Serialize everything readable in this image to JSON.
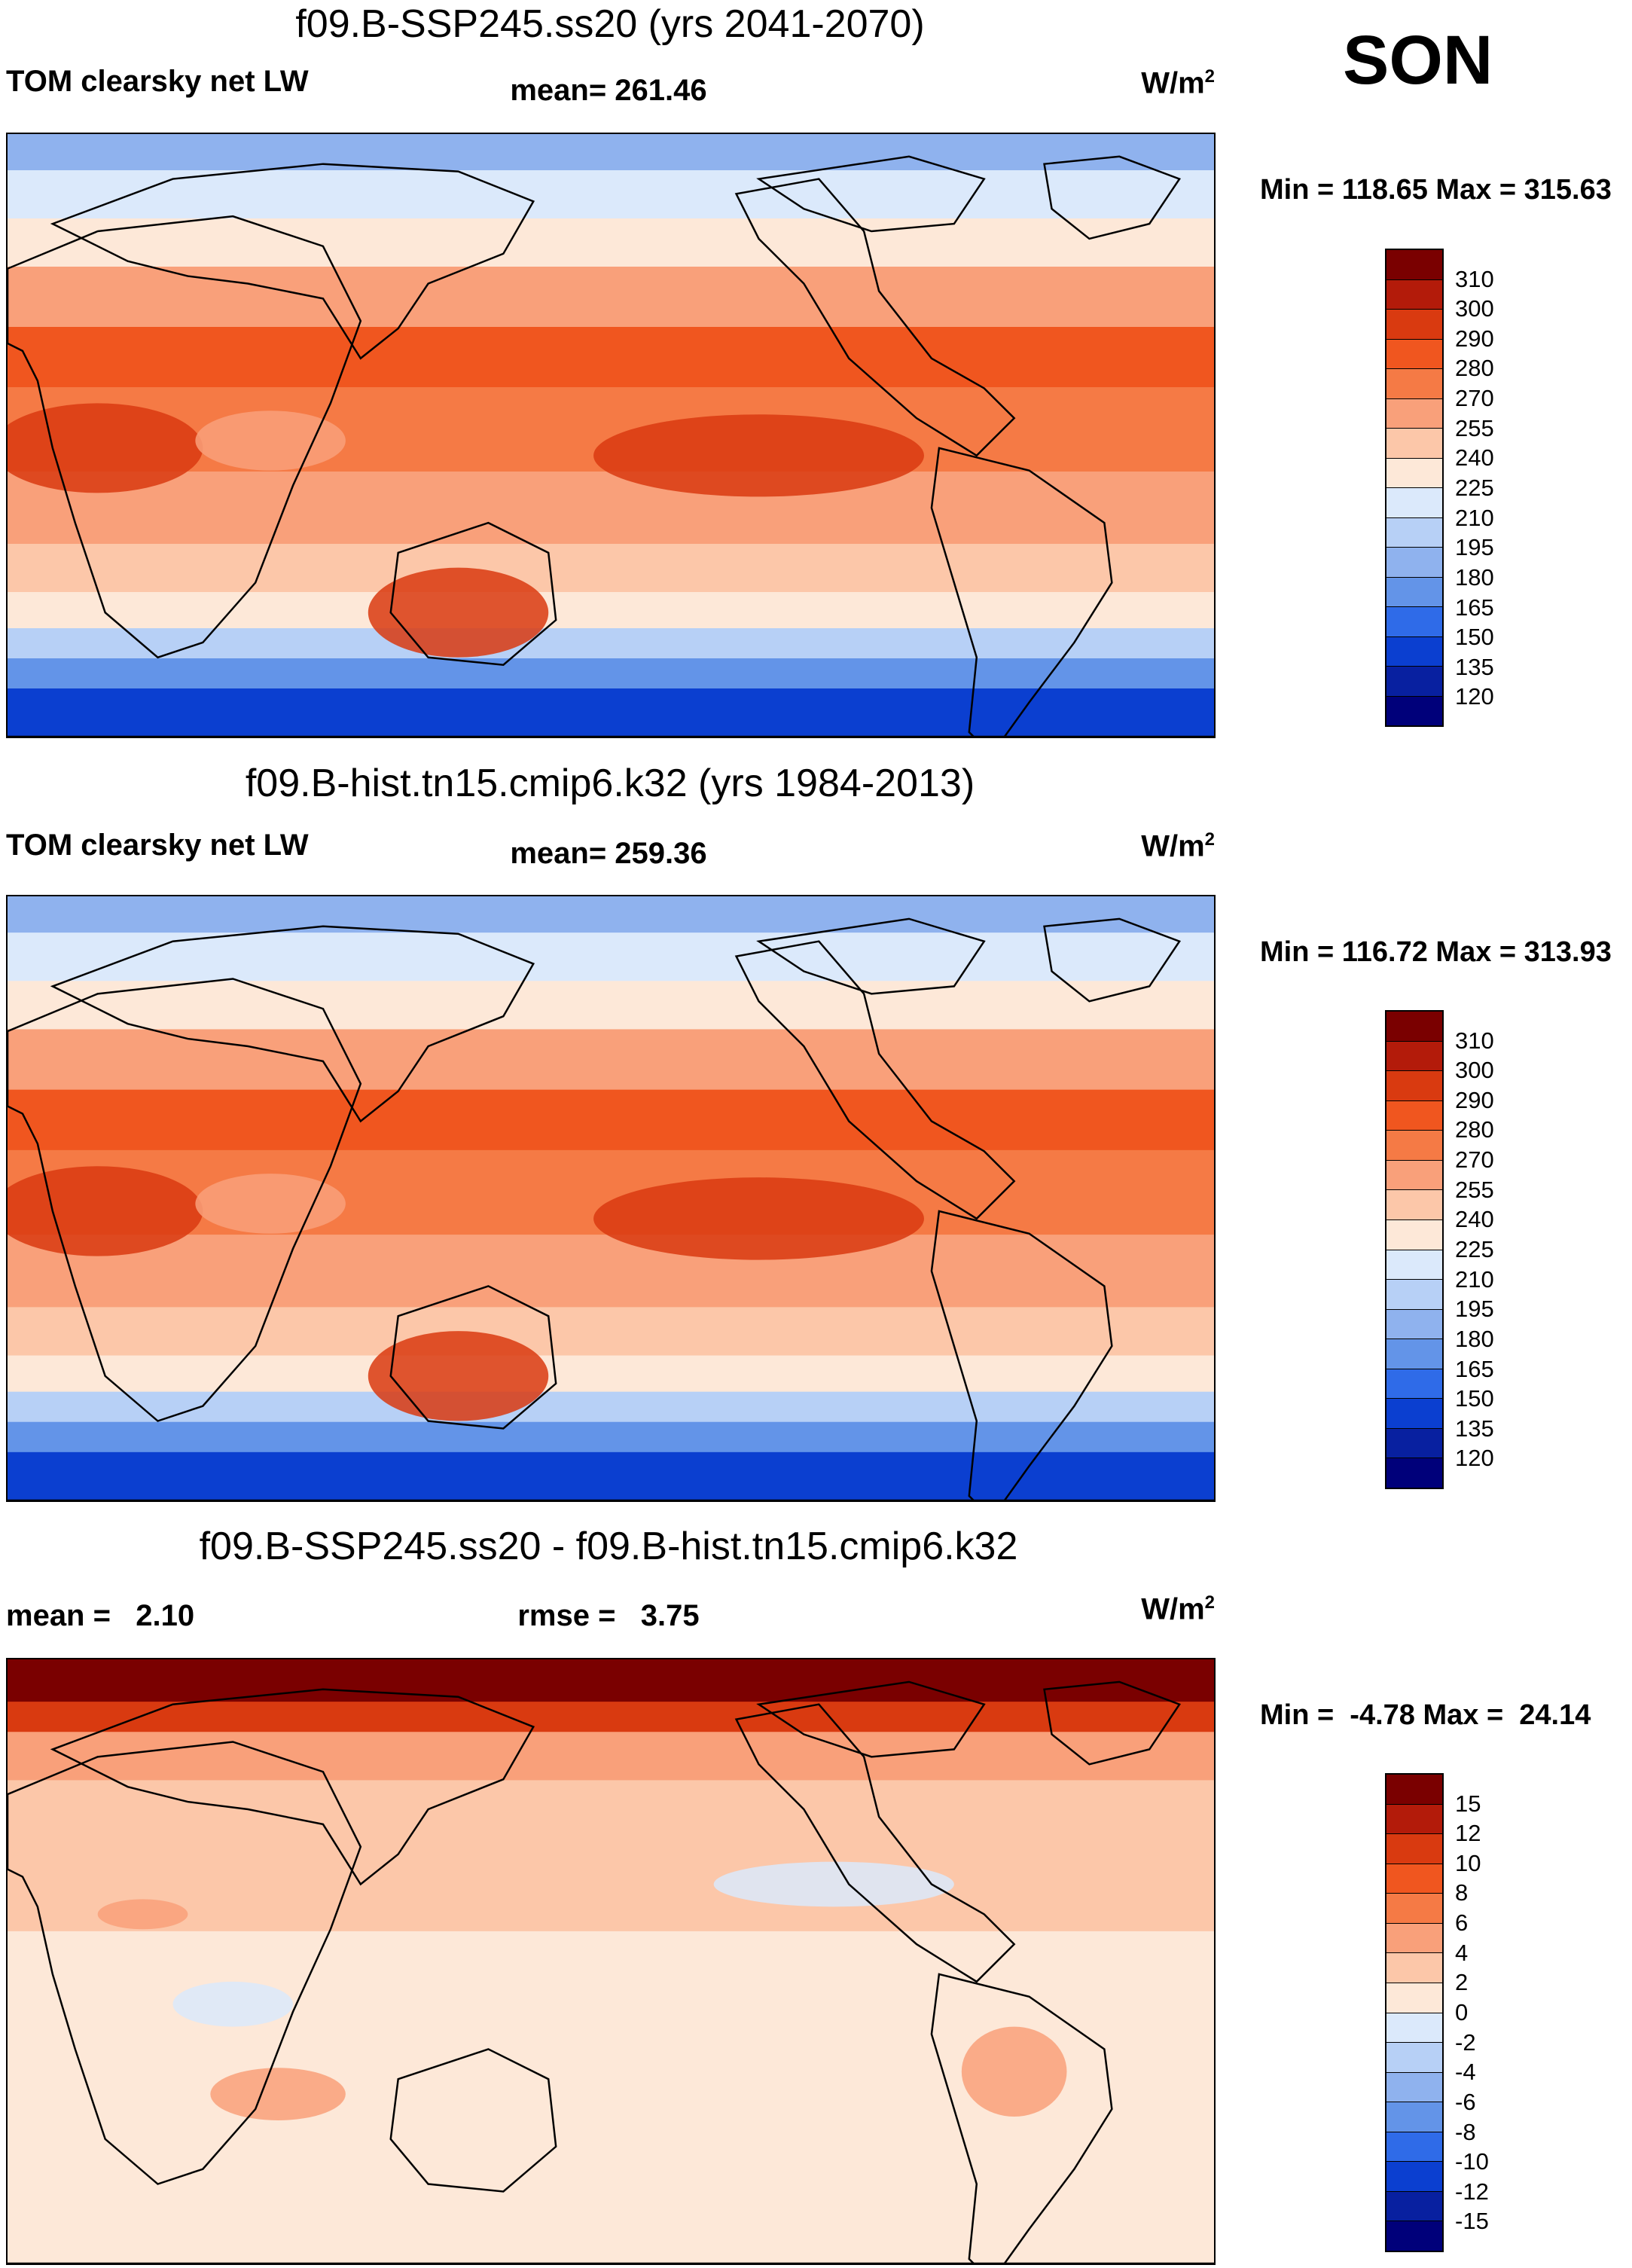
{
  "season": "SON",
  "units_main": "W/m",
  "units_exp": "2",
  "panels": [
    {
      "title": "f09.B-SSP245.ss20 (yrs 2041-2070)",
      "left_label": "TOM clearsky net LW",
      "center_label": "mean= 261.46",
      "minmax": "Min = 118.65 Max = 315.63",
      "colorbar_labels": [
        "310",
        "300",
        "290",
        "280",
        "270",
        "255",
        "240",
        "225",
        "210",
        "195",
        "180",
        "165",
        "150",
        "135",
        "120"
      ],
      "colorbar_colors": [
        "#7a0000",
        "#b31b0a",
        "#d93a10",
        "#f0561f",
        "#f57a45",
        "#f9a07a",
        "#fcc7a9",
        "#fde8d8",
        "#dbe9fb",
        "#b7d0f6",
        "#8fb2ee",
        "#6394e8",
        "#2f6be8",
        "#0b3fd0",
        "#0820a0",
        "#00007a"
      ],
      "map_style": "abs"
    },
    {
      "title": "f09.B-hist.tn15.cmip6.k32 (yrs 1984-2013)",
      "left_label": "TOM clearsky net LW",
      "center_label": "mean= 259.36",
      "minmax": "Min = 116.72 Max = 313.93",
      "colorbar_labels": [
        "310",
        "300",
        "290",
        "280",
        "270",
        "255",
        "240",
        "225",
        "210",
        "195",
        "180",
        "165",
        "150",
        "135",
        "120"
      ],
      "colorbar_colors": [
        "#7a0000",
        "#b31b0a",
        "#d93a10",
        "#f0561f",
        "#f57a45",
        "#f9a07a",
        "#fcc7a9",
        "#fde8d8",
        "#dbe9fb",
        "#b7d0f6",
        "#8fb2ee",
        "#6394e8",
        "#2f6be8",
        "#0b3fd0",
        "#0820a0",
        "#00007a"
      ],
      "map_style": "abs"
    },
    {
      "title": "f09.B-SSP245.ss20 - f09.B-hist.tn15.cmip6.k32",
      "left_label": "mean =   2.10",
      "center_label": "rmse =   3.75",
      "minmax": "Min =  -4.78 Max =  24.14",
      "colorbar_labels": [
        "15",
        "12",
        "10",
        "8",
        "6",
        "4",
        "2",
        "0",
        "-2",
        "-4",
        "-6",
        "-8",
        "-10",
        "-12",
        "-15"
      ],
      "colorbar_colors": [
        "#7a0000",
        "#b31b0a",
        "#d93a10",
        "#f0561f",
        "#f57a45",
        "#f9a07a",
        "#fcc7a9",
        "#fde8d8",
        "#dbe9fb",
        "#b7d0f6",
        "#8fb2ee",
        "#6394e8",
        "#2f6be8",
        "#0b3fd0",
        "#0820a0",
        "#00007a"
      ],
      "map_style": "diff"
    }
  ]
}
